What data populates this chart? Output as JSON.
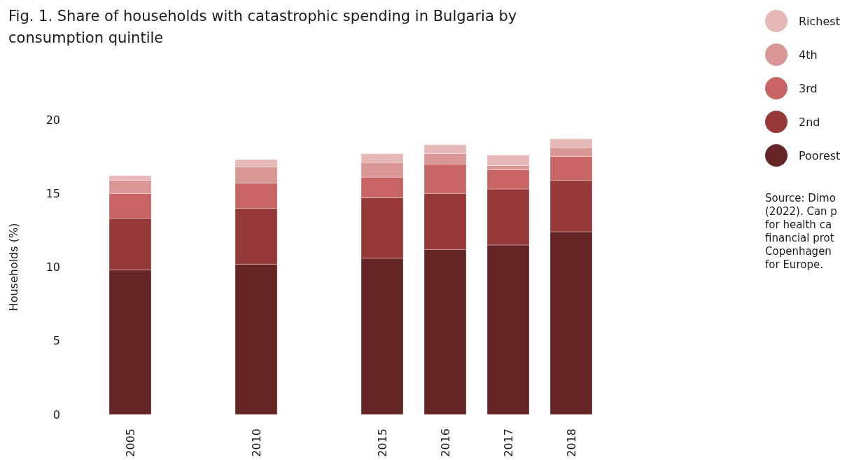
{
  "chart_data": {
    "type": "bar",
    "stacked": true,
    "title": "Fig. 1. Share of households with catastrophic spending in Bulgaria by consumption quintile",
    "ylabel": "Households (%)",
    "categories": [
      "2005",
      null,
      "2010",
      null,
      "2015",
      "2016",
      "2017",
      "2018"
    ],
    "series": [
      {
        "name": "Poorest",
        "color": "#652426",
        "values": [
          9.8,
          null,
          10.2,
          null,
          10.6,
          11.2,
          11.5,
          12.4
        ]
      },
      {
        "name": "2nd",
        "color": "#963938",
        "values": [
          3.5,
          null,
          3.8,
          null,
          4.1,
          3.8,
          3.8,
          3.5
        ]
      },
      {
        "name": "3rd",
        "color": "#c86564",
        "values": [
          1.7,
          null,
          1.7,
          null,
          1.4,
          2.0,
          1.3,
          1.6
        ]
      },
      {
        "name": "4th",
        "color": "#d99694",
        "values": [
          0.9,
          null,
          1.1,
          null,
          1.0,
          0.7,
          0.3,
          0.6
        ]
      },
      {
        "name": "Richest",
        "color": "#e6b9b8",
        "values": [
          0.3,
          null,
          0.5,
          null,
          0.6,
          0.6,
          0.7,
          0.6
        ]
      }
    ],
    "ylim": [
      0,
      20
    ],
    "yticks": [
      0,
      5,
      10,
      15,
      20
    ],
    "grid": false,
    "legend": "top right",
    "annotations": [
      "Source: Dimo\n(2022). Can p\nfor health ca\nfinancial prot\nCopenhagen\nfor Europe."
    ]
  }
}
